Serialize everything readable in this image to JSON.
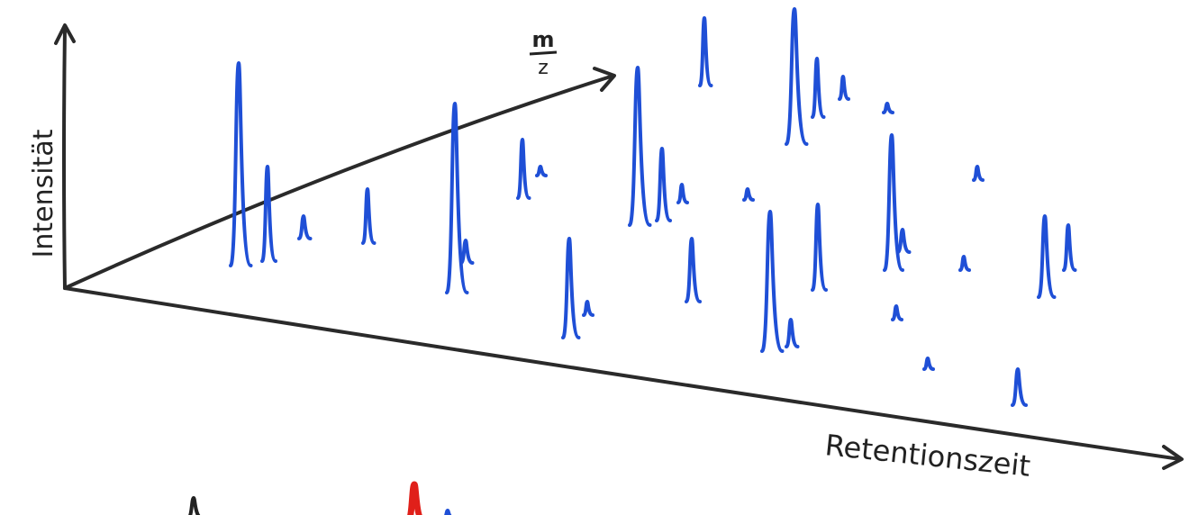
{
  "axes": {
    "intensity": "Intensität",
    "mass_to_charge": {
      "numerator": "m",
      "denominator": "z"
    },
    "retention_time": "Retentionszeit"
  }
}
